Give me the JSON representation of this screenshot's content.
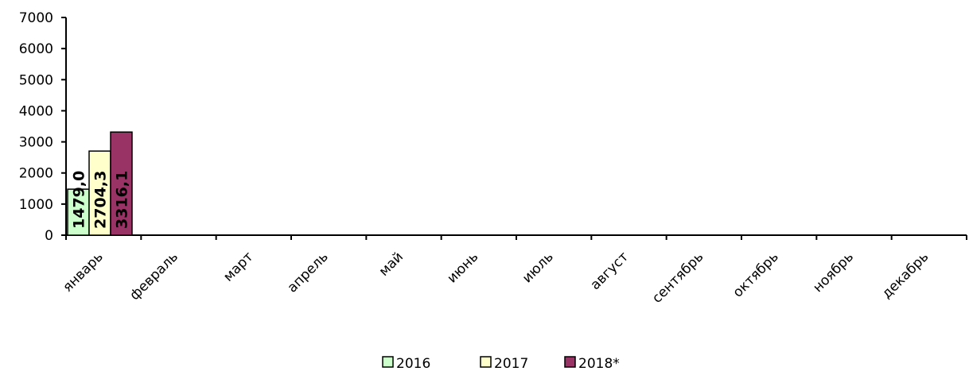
{
  "chart_data": {
    "type": "bar",
    "categories": [
      "январь",
      "февраль",
      "март",
      "апрель",
      "май",
      "июнь",
      "июль",
      "август",
      "сентябрь",
      "октябрь",
      "ноябрь",
      "декабрь"
    ],
    "series": [
      {
        "name": "2016",
        "color": "#ccffcc",
        "values": [
          1479,
          null,
          null,
          null,
          null,
          null,
          null,
          null,
          null,
          null,
          null,
          null
        ],
        "value_labels": [
          "1479,0",
          null,
          null,
          null,
          null,
          null,
          null,
          null,
          null,
          null,
          null,
          null
        ]
      },
      {
        "name": "2017",
        "color": "#ffffcc",
        "values": [
          2704.3,
          null,
          null,
          null,
          null,
          null,
          null,
          null,
          null,
          null,
          null,
          null
        ],
        "value_labels": [
          "2704,3",
          null,
          null,
          null,
          null,
          null,
          null,
          null,
          null,
          null,
          null,
          null
        ]
      },
      {
        "name": "2018*",
        "color": "#993366",
        "values": [
          3316.1,
          null,
          null,
          null,
          null,
          null,
          null,
          null,
          null,
          null,
          null,
          null
        ],
        "value_labels": [
          "3316,1",
          null,
          null,
          null,
          null,
          null,
          null,
          null,
          null,
          null,
          null,
          null
        ]
      }
    ],
    "ylim": [
      0,
      7000
    ],
    "yticks": [
      0,
      1000,
      2000,
      3000,
      4000,
      5000,
      6000,
      7000
    ],
    "legend": "bottom"
  }
}
